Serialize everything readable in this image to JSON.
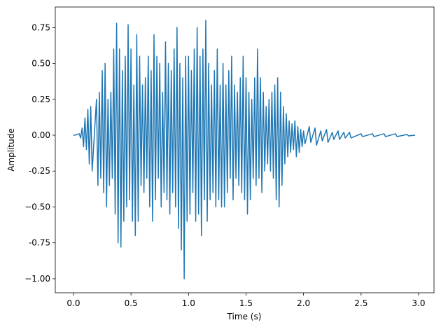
{
  "chart_data": {
    "type": "line",
    "xlabel": "Time (s)",
    "ylabel": "Amplitude",
    "x": [
      0,
      0.0125,
      0.05,
      0.0625,
      0.075,
      0.0875,
      0.1,
      0.1125,
      0.125,
      0.1375,
      0.15,
      0.1625,
      0.2,
      0.2125,
      0.225,
      0.2375,
      0.25,
      0.2625,
      0.275,
      0.2875,
      0.3,
      0.3125,
      0.325,
      0.3375,
      0.35,
      0.3625,
      0.375,
      0.3875,
      0.4,
      0.4125,
      0.425,
      0.4375,
      0.45,
      0.4625,
      0.475,
      0.4875,
      0.5,
      0.5125,
      0.525,
      0.5375,
      0.55,
      0.5625,
      0.575,
      0.5875,
      0.6,
      0.6125,
      0.625,
      0.6375,
      0.65,
      0.6625,
      0.675,
      0.6875,
      0.7,
      0.7125,
      0.725,
      0.7375,
      0.75,
      0.7625,
      0.775,
      0.7875,
      0.8,
      0.8125,
      0.825,
      0.8375,
      0.85,
      0.8625,
      0.875,
      0.8875,
      0.9,
      0.9125,
      0.925,
      0.9375,
      0.95,
      0.9625,
      0.975,
      0.9875,
      1.0,
      1.0125,
      1.025,
      1.0375,
      1.05,
      1.0625,
      1.075,
      1.0875,
      1.1,
      1.1125,
      1.125,
      1.1375,
      1.15,
      1.1625,
      1.175,
      1.1875,
      1.2,
      1.2125,
      1.225,
      1.2375,
      1.25,
      1.2625,
      1.275,
      1.2875,
      1.3,
      1.3125,
      1.325,
      1.3375,
      1.35,
      1.3625,
      1.375,
      1.3875,
      1.4,
      1.4125,
      1.425,
      1.4375,
      1.45,
      1.4625,
      1.475,
      1.4875,
      1.5,
      1.5125,
      1.525,
      1.5375,
      1.55,
      1.5625,
      1.575,
      1.5875,
      1.6,
      1.6125,
      1.625,
      1.6375,
      1.65,
      1.6625,
      1.675,
      1.6875,
      1.7,
      1.7125,
      1.725,
      1.7375,
      1.75,
      1.7625,
      1.775,
      1.7875,
      1.8,
      1.8125,
      1.825,
      1.8375,
      1.85,
      1.8625,
      1.875,
      1.8875,
      1.9,
      1.9125,
      1.925,
      1.9375,
      1.95,
      1.9625,
      1.975,
      1.9875,
      2.0,
      2.0125,
      2.05,
      2.0625,
      2.1,
      2.1125,
      2.15,
      2.1625,
      2.2,
      2.2125,
      2.25,
      2.2625,
      2.3,
      2.3125,
      2.35,
      2.3625,
      2.4,
      2.4125,
      2.5,
      2.5125,
      2.6,
      2.6125,
      2.7,
      2.7125,
      2.8,
      2.8125,
      2.9,
      2.9125,
      2.97
    ],
    "series": [
      {
        "color": "#1f77b4",
        "values": [
          0,
          0,
          0.01,
          -0.02,
          0.05,
          -0.08,
          0.12,
          -0.1,
          0.18,
          -0.2,
          0.2,
          -0.25,
          0.25,
          -0.35,
          0.3,
          -0.3,
          0.45,
          -0.4,
          0.5,
          -0.5,
          0.25,
          -0.35,
          0.3,
          -0.3,
          0.6,
          -0.55,
          0.78,
          -0.75,
          0.6,
          -0.78,
          0.45,
          -0.6,
          0.55,
          -0.5,
          0.77,
          -0.45,
          0.6,
          -0.6,
          0.35,
          -0.7,
          0.7,
          -0.6,
          0.55,
          -0.35,
          0.35,
          -0.4,
          0.4,
          -0.3,
          0.55,
          -0.5,
          0.45,
          -0.6,
          0.7,
          -0.45,
          0.55,
          -0.3,
          0.5,
          -0.5,
          0.3,
          -0.4,
          0.65,
          -0.45,
          0.5,
          -0.55,
          0.45,
          -0.4,
          0.6,
          -0.5,
          0.75,
          -0.65,
          0.5,
          -0.8,
          0.4,
          -1.0,
          0.55,
          -0.6,
          0.55,
          -0.55,
          0.45,
          -0.4,
          0.6,
          -0.6,
          0.75,
          -0.55,
          0.55,
          -0.7,
          0.6,
          -0.45,
          0.8,
          -0.6,
          0.5,
          -0.45,
          0.35,
          -0.4,
          0.45,
          -0.5,
          0.6,
          -0.45,
          0.35,
          -0.5,
          0.5,
          -0.5,
          0.35,
          -0.4,
          0.45,
          -0.3,
          0.55,
          -0.45,
          0.35,
          -0.3,
          0.3,
          -0.35,
          0.4,
          -0.4,
          0.55,
          -0.45,
          0.4,
          -0.55,
          0.3,
          -0.45,
          0.25,
          -0.3,
          0.4,
          -0.35,
          0.6,
          -0.3,
          0.4,
          -0.4,
          0.3,
          -0.25,
          0.2,
          -0.2,
          0.25,
          -0.25,
          0.3,
          -0.3,
          0.35,
          -0.45,
          0.4,
          -0.5,
          0.3,
          -0.35,
          0.2,
          -0.2,
          0.15,
          -0.15,
          0.1,
          -0.12,
          0.08,
          -0.1,
          0.1,
          -0.15,
          0.06,
          -0.12,
          0.04,
          -0.08,
          0.03,
          -0.06,
          0.06,
          -0.05,
          0.05,
          -0.07,
          0.03,
          -0.04,
          0.04,
          -0.05,
          0.02,
          -0.03,
          0.03,
          -0.03,
          0.02,
          -0.02,
          0.02,
          -0.02,
          0.01,
          -0.01,
          0.01,
          -0.01,
          0.01,
          -0.01,
          0.01,
          -0.01,
          0.005,
          -0.005,
          0
        ]
      }
    ],
    "xlim": [
      -0.158,
      3.134
    ],
    "xticks": [
      {
        "value": 0,
        "label": "0.0"
      },
      0.5,
      {
        "value": 1,
        "label": "1.0"
      },
      1.5,
      {
        "value": 2,
        "label": "2.0"
      },
      2.5,
      {
        "value": 3,
        "label": "3.0"
      }
    ],
    "ylim": [
      -1.098,
      0.893
    ],
    "yticks": [
      {
        "value": -1,
        "label": "−1.00"
      },
      -0.75,
      {
        "value": -0.5,
        "label": "−0.50"
      },
      -0.25,
      {
        "value": 0,
        "label": "0.00"
      },
      0.25,
      {
        "value": 0.5,
        "label": "0.50"
      },
      0.75
    ]
  }
}
